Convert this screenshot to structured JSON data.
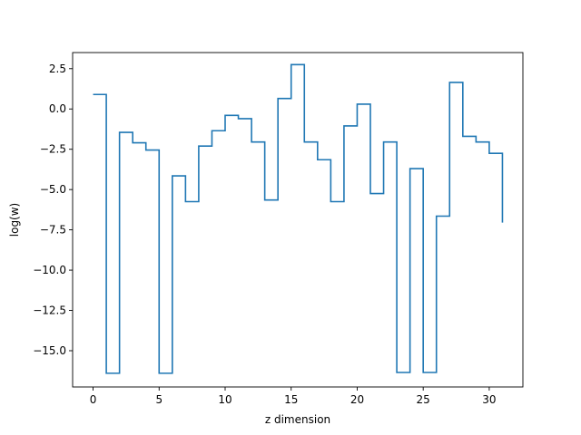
{
  "chart_data": {
    "type": "line",
    "step": "post",
    "title": "",
    "xlabel": "z dimension",
    "ylabel": "log(w)",
    "xlim": [
      -1.55,
      32.55
    ],
    "ylim": [
      -17.25,
      3.5
    ],
    "xticks": [
      0,
      5,
      10,
      15,
      20,
      25,
      30
    ],
    "xtick_labels": [
      "0",
      "5",
      "10",
      "15",
      "20",
      "25",
      "30"
    ],
    "yticks": [
      2.5,
      0.0,
      -2.5,
      -5.0,
      -7.5,
      -10.0,
      -12.5,
      -15.0
    ],
    "ytick_labels": [
      "2.5",
      "0.0",
      "−2.5",
      "−5.0",
      "−7.5",
      "−10.0",
      "−12.5",
      "−15.0"
    ],
    "grid": false,
    "series": [
      {
        "color": "#1f77b4",
        "x": [
          0,
          1,
          2,
          3,
          4,
          5,
          6,
          7,
          8,
          9,
          10,
          11,
          12,
          13,
          14,
          15,
          16,
          17,
          18,
          19,
          20,
          21,
          22,
          23,
          24,
          25,
          26,
          27,
          28,
          29,
          30,
          31
        ],
        "y": [
          0.9,
          -16.4,
          -1.45,
          -2.1,
          -2.55,
          -16.4,
          -4.15,
          -5.75,
          -2.3,
          -1.35,
          -0.4,
          -0.6,
          -2.05,
          -5.65,
          0.65,
          2.75,
          -2.05,
          -3.15,
          -5.75,
          -1.05,
          0.3,
          -5.25,
          -2.05,
          -16.35,
          -3.7,
          -16.35,
          -6.65,
          1.65,
          -1.7,
          -2.05,
          -2.75,
          -7.05
        ]
      }
    ]
  }
}
